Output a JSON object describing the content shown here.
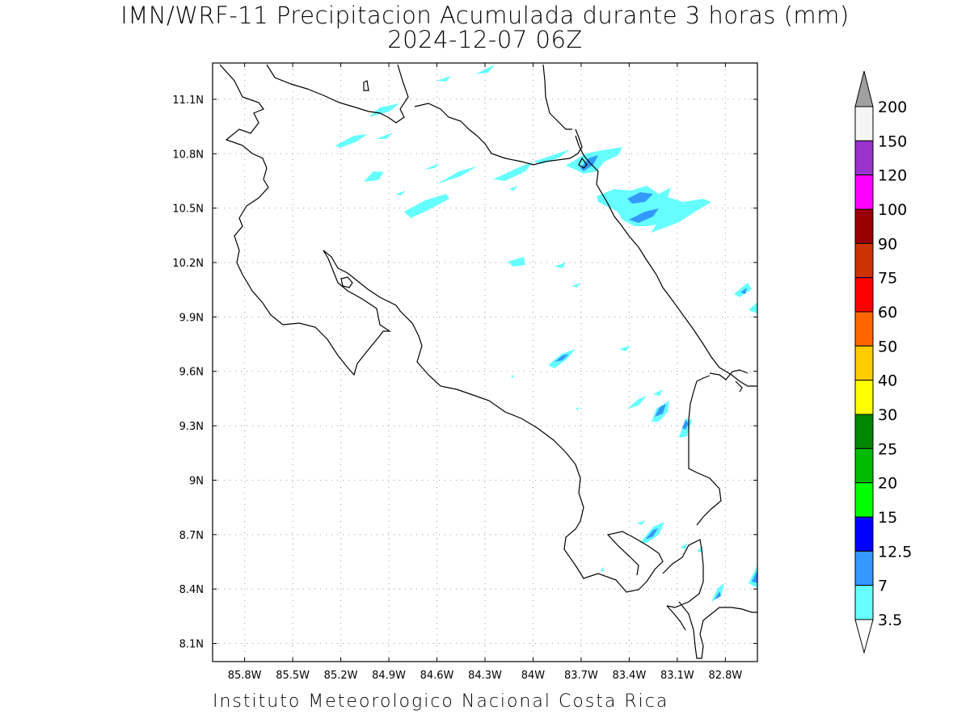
{
  "title_line1": "IMN/WRF-11 Precipitacion Acumulada durante 3 horas (mm)",
  "title_line2": "2024-12-07 06Z",
  "footer": "Instituto Meteorologico Nacional Costa Rica",
  "map": {
    "lon_min": -86.0,
    "lon_max": -82.6,
    "lat_min": 8.0,
    "lat_max": 11.3,
    "lon_ticks": [
      "85.8W",
      "85.5W",
      "85.2W",
      "84.9W",
      "84.6W",
      "84.3W",
      "84W",
      "83.7W",
      "83.4W",
      "83.1W",
      "82.8W"
    ],
    "lat_ticks": [
      "11.1N",
      "10.8N",
      "10.5N",
      "10.2N",
      "9.9N",
      "9.6N",
      "9.3N",
      "9N",
      "8.7N",
      "8.4N",
      "8.1N"
    ],
    "gridlines": true
  },
  "legend": {
    "labels": [
      "200",
      "150",
      "120",
      "100",
      "90",
      "75",
      "60",
      "50",
      "40",
      "30",
      "25",
      "20",
      "15",
      "12.5",
      "7",
      "3.5"
    ],
    "colors": [
      "#f5f5f5",
      "#9933cc",
      "#ff00ff",
      "#990000",
      "#cc3300",
      "#ff0000",
      "#ff6600",
      "#ffcc00",
      "#ffff00",
      "#008800",
      "#00bb00",
      "#00ff00",
      "#0000ff",
      "#3399ff",
      "#66ffff"
    ],
    "over_color": "#a0a0a0",
    "under_color": "#ffffff"
  }
}
